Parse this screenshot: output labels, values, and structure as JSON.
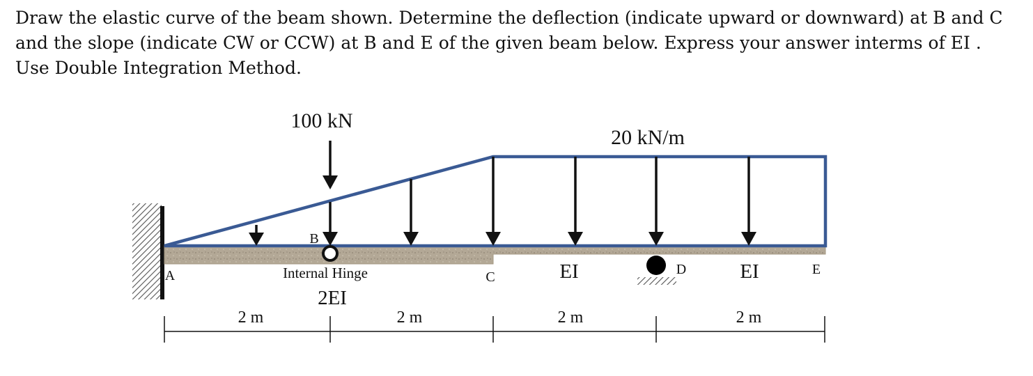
{
  "problem_text": "Draw the elastic curve of the beam shown. Determine the deflection (indicate upward or downward) at B and C and  the slope (indicate CW or CCW) at B and E of the given beam below. Express your answer interms of EI . Use Double Integration Method.",
  "labels": {
    "point_load": "100 kN",
    "distributed_load": "20 kN/m",
    "A": "A",
    "B": "B",
    "C": "C",
    "D": "D",
    "E": "E",
    "hinge": "Internal Hinge",
    "stiffness_AC": "2EI",
    "stiffness_CD": "EI",
    "stiffness_DE": "EI"
  },
  "spans": [
    "2 m",
    "2 m",
    "2 m",
    "2 m"
  ],
  "colors": {
    "beam_fill": "#b3a896",
    "load_outline": "#3a5a94",
    "arrow": "#111111"
  },
  "icons": [
    "fixed-support-hatch",
    "hinge-circle",
    "roller-support-icon",
    "down-arrow-icon"
  ]
}
